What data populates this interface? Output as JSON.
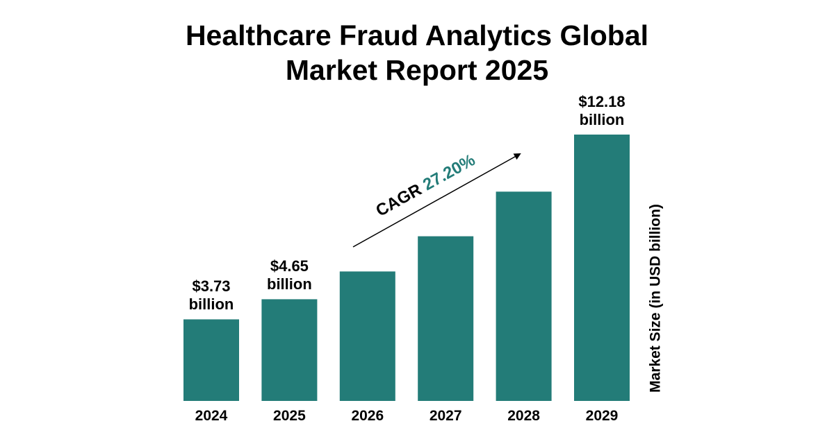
{
  "chart_data": {
    "type": "bar",
    "title": "Healthcare Fraud Analytics Global Market Report 2025",
    "categories": [
      "2024",
      "2025",
      "2026",
      "2027",
      "2028",
      "2029"
    ],
    "values": [
      3.73,
      4.65,
      5.92,
      7.53,
      9.57,
      12.18
    ],
    "value_labels": [
      "$3.73 billion",
      "$4.65 billion",
      null,
      null,
      null,
      "$12.18 billion"
    ],
    "color": "#237c78",
    "y_axis_label": "Market Size (in USD billion)",
    "annotation": {
      "text": "CAGR",
      "value": "27.20%"
    }
  }
}
